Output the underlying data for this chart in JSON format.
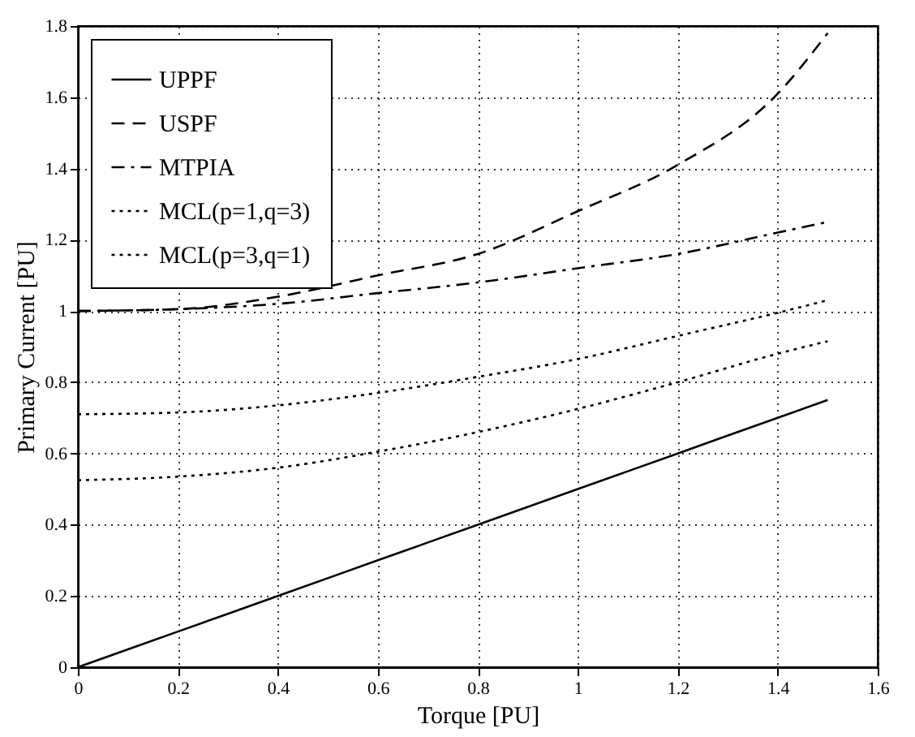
{
  "chart_data": {
    "type": "line",
    "xlabel": "Torque  [PU]",
    "ylabel": "Primary Current [PU]",
    "xlim": [
      0,
      1.6
    ],
    "xticks": [
      0,
      0.2,
      0.4,
      0.6,
      0.8,
      1,
      1.2,
      1.4,
      1.6
    ],
    "ylim": [
      0,
      1.8
    ],
    "yticks": [
      0,
      0.2,
      0.4,
      0.6,
      0.8,
      1,
      1.2,
      1.4,
      1.6,
      1.8
    ],
    "grid": true,
    "legend": "top left",
    "marker": "none",
    "x": [
      0,
      0.2,
      0.4,
      0.6,
      0.8,
      1.0,
      1.2,
      1.4,
      1.5
    ],
    "series": [
      {
        "name": "UPPF",
        "color": "#000000",
        "line_style": "solid",
        "values": [
          0,
          0.1,
          0.2,
          0.3,
          0.4,
          0.5,
          0.6,
          0.7,
          0.75
        ]
      },
      {
        "name": "USPF",
        "color": "#000000",
        "line_style": "dashed",
        "values": [
          1.0,
          1.005,
          1.04,
          1.1,
          1.16,
          1.28,
          1.41,
          1.61,
          1.78
        ]
      },
      {
        "name": "MTPIA",
        "color": "#000000",
        "line_style": "dashdot",
        "values": [
          1.0,
          1.005,
          1.02,
          1.05,
          1.08,
          1.12,
          1.16,
          1.22,
          1.25
        ]
      },
      {
        "name": "MCL(p=1,q=3)",
        "color": "#000000",
        "line_style": "dotted",
        "values": [
          0.71,
          0.715,
          0.735,
          0.77,
          0.815,
          0.865,
          0.93,
          0.995,
          1.03
        ]
      },
      {
        "name": "MCL(p=3,q=1)",
        "color": "#000000",
        "line_style": "dotted",
        "values": [
          0.525,
          0.535,
          0.56,
          0.605,
          0.66,
          0.725,
          0.8,
          0.88,
          0.915
        ]
      }
    ]
  }
}
